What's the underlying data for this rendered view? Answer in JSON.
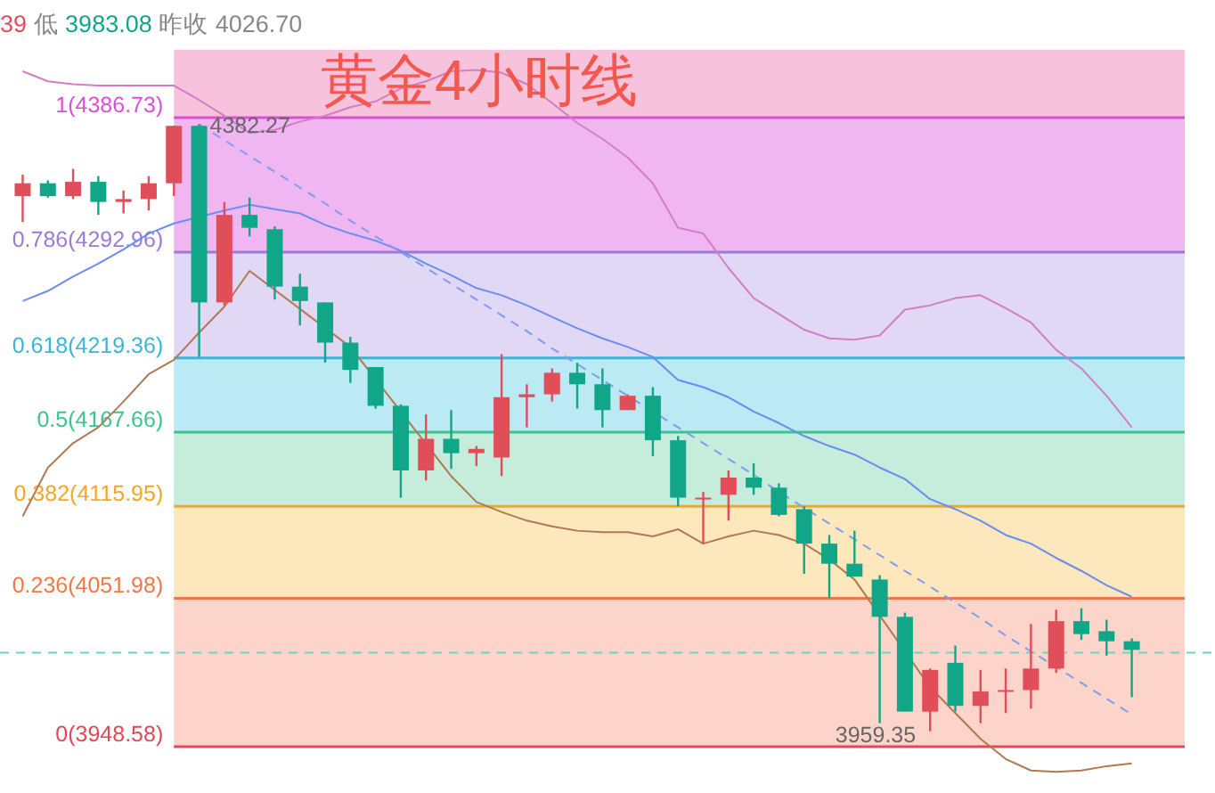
{
  "chart_data": {
    "type": "candlestick",
    "title": "黄金4小时线",
    "annotations": [
      "39 低 3983.08 昨收 4026.70",
      {
        "text": "4382.27",
        "y": 4382.27
      },
      "3959.35"
    ],
    "categories": [
      null,
      null,
      null,
      null,
      null,
      null,
      null,
      null,
      null,
      null,
      null,
      null,
      null,
      null,
      null,
      null,
      null,
      null,
      null,
      null,
      null,
      null,
      null,
      null,
      null,
      null,
      null,
      null,
      null,
      null,
      null,
      null,
      null,
      null,
      null,
      null,
      null,
      null,
      null,
      null,
      null,
      null,
      null,
      null,
      null
    ],
    "ohlc": [
      [
        4332,
        4347,
        4314,
        4341
      ],
      [
        4341,
        4343,
        4331,
        4332
      ],
      [
        4332,
        4351,
        4330,
        4342
      ],
      [
        4342,
        4346,
        4319,
        4328
      ],
      [
        4328,
        4336,
        4320,
        4330
      ],
      [
        4330,
        4346,
        4322,
        4341
      ],
      [
        4341,
        4381,
        4332,
        4381
      ],
      [
        4381,
        4382.27,
        4220,
        4258
      ],
      [
        4258,
        4328,
        4256,
        4319
      ],
      [
        4319,
        4331,
        4304,
        4310
      ],
      [
        4309,
        4311,
        4260,
        4269
      ],
      [
        4269,
        4278,
        4242,
        4259
      ],
      [
        4258,
        4258,
        4216,
        4230
      ],
      [
        4230,
        4234,
        4202,
        4211
      ],
      [
        4213,
        4213,
        4184,
        4186
      ],
      [
        4186,
        4187,
        4122,
        4141
      ],
      [
        4141,
        4180,
        4134,
        4163
      ],
      [
        4163,
        4183,
        4142,
        4153
      ],
      [
        4153,
        4158,
        4144,
        4156
      ],
      [
        4150,
        4222,
        4137,
        4192
      ],
      [
        4192,
        4201,
        4171,
        4194
      ],
      [
        4194,
        4212,
        4189,
        4209
      ],
      [
        4209,
        4216,
        4184,
        4201
      ],
      [
        4201,
        4212,
        4171,
        4183
      ],
      [
        4183,
        4194,
        4183,
        4193
      ],
      [
        4193,
        4199,
        4151,
        4162
      ],
      [
        4162,
        4165,
        4116,
        4122
      ],
      [
        4121,
        4126,
        4090,
        4122
      ],
      [
        4124,
        4141,
        4106,
        4136
      ],
      [
        4136,
        4146,
        4124,
        4129
      ],
      [
        4129,
        4132,
        4109,
        4110
      ],
      [
        4114,
        4116,
        4069,
        4090
      ],
      [
        4090,
        4096,
        4052,
        4076
      ],
      [
        4076,
        4099,
        4067,
        4067
      ],
      [
        4065,
        4068,
        3965,
        4039
      ],
      [
        4039,
        4042,
        3973,
        3973
      ],
      [
        3973,
        4003,
        3959.35,
        4002
      ],
      [
        4007,
        4019,
        3973,
        3977
      ],
      [
        3977,
        4002,
        3965,
        3987
      ],
      [
        3987,
        4003,
        3972,
        3988
      ],
      [
        3988,
        4034,
        3975,
        4003
      ],
      [
        4003,
        4044,
        4000,
        4036
      ],
      [
        4036,
        4045,
        4023,
        4027
      ],
      [
        4029,
        4037,
        4012,
        4022
      ],
      [
        4022,
        4024,
        3983.08,
        4016
      ]
    ],
    "colors": [
      "#e04e5a",
      "#12a689",
      "#e04e5a",
      "#12a689",
      "#e04e5a",
      "#e04e5a",
      "#e04e5a",
      "#12a689",
      "#e04e5a",
      "#12a689",
      "#12a689",
      "#12a689",
      "#12a689",
      "#12a689",
      "#12a689",
      "#12a689",
      "#e04e5a",
      "#12a689",
      "#e04e5a",
      "#e04e5a",
      "#e04e5a",
      "#e04e5a",
      "#12a689",
      "#12a689",
      "#e04e5a",
      "#12a689",
      "#12a689",
      "#e04e5a",
      "#e04e5a",
      "#12a689",
      "#12a689",
      "#12a689",
      "#12a689",
      "#12a689",
      "#12a689",
      "#12a689",
      "#e04e5a",
      "#12a689",
      "#e04e5a",
      "#e04e5a",
      "#e04e5a",
      "#e04e5a",
      "#12a689",
      "#12a689",
      "#12a689"
    ],
    "series": [
      {
        "type": "line",
        "color": "#d47cc6",
        "values": [
          4419,
          4412,
          4410,
          4409,
          4409,
          4409,
          4409,
          4399,
          4388,
          4376,
          4378,
          4384,
          4388,
          4394,
          4398,
          4407,
          4412,
          4419,
          4420,
          4418,
          4410,
          4397,
          4383,
          4372,
          4359,
          4341,
          4310,
          4306,
          4282,
          4261,
          4250,
          4239,
          4233,
          4232,
          4235,
          4253,
          4256,
          4261,
          4263,
          4254,
          4244,
          4225,
          4212,
          4193,
          4171
        ]
      },
      {
        "type": "line",
        "color": "#6b8cf0",
        "values": [
          4259,
          4266,
          4276,
          4285,
          4295,
          4306,
          4313,
          null,
          4322,
          4326,
          4323,
          4320,
          4312,
          4306,
          4301,
          4294,
          4285,
          4277,
          4268,
          4263,
          4256,
          4248,
          4240,
          4233,
          4227,
          4220,
          4204,
          4199,
          4192,
          4182,
          4174,
          4165,
          4158,
          4152,
          4143,
          4135,
          4121,
          4114,
          4106,
          4096,
          4090,
          4080,
          4071,
          4061,
          4053
        ]
      },
      {
        "type": "line",
        "color": "#b07a50",
        "values": [
          4109,
          4143,
          4160,
          4171,
          4189,
          4208,
          4218,
          4237,
          4255,
          4280,
          null,
          null,
          null,
          4227,
          null,
          null,
          null,
          4137,
          4119,
          4112,
          4106,
          4102,
          4099,
          4098,
          4098,
          4095,
          4100,
          4090,
          4095,
          4099,
          4096,
          4090,
          4079,
          4065,
          null,
          null,
          3990,
          3972,
          3954,
          3940,
          3932,
          3931,
          3932,
          3935,
          3937
        ]
      },
      {
        "type": "line",
        "color": "#7f9cf0",
        "line_style": "dashed",
        "values": [
          null,
          null,
          null,
          null,
          null,
          null,
          null,
          4382,
          4371,
          4360,
          4349,
          4338,
          4327,
          4315,
          4304,
          4293,
          4282,
          4271,
          4260,
          4249,
          4238,
          4226,
          4215,
          4204,
          4193,
          null,
          4171,
          4160,
          4149,
          4138,
          4126,
          4115,
          4104,
          4093,
          4082,
          4071,
          4060,
          4049,
          4038,
          4026,
          4015,
          4004,
          3993,
          3982,
          3971
        ]
      }
    ],
    "bands": [
      {
        "axis": "y",
        "from": 4386.73,
        "to": 4434,
        "color": "#f7c3dc"
      },
      {
        "axis": "y",
        "from": 4292.96,
        "to": 4386.73,
        "color": "#f0b6f2"
      },
      {
        "axis": "y",
        "from": 4219.36,
        "to": 4292.96,
        "color": "#e1d8f5"
      },
      {
        "axis": "y",
        "from": 4167.66,
        "to": 4219.36,
        "color": "#bbe9f4"
      },
      {
        "axis": "y",
        "from": 4115.95,
        "to": 4167.66,
        "color": "#c6ecdc"
      },
      {
        "axis": "y",
        "from": 4051.98,
        "to": 4115.95,
        "color": "#fde7bd"
      },
      {
        "axis": "y",
        "from": 3948.58,
        "to": 4051.98,
        "color": "#fdd4c9"
      }
    ],
    "ref_lines": [
      {
        "axis": "y",
        "value": 4386.73,
        "label": "1(4386.73)",
        "color": "#d94fd6"
      },
      {
        "axis": "y",
        "value": 4292.96,
        "label": "0.786(4292.96)",
        "color": "#9b7ad6"
      },
      {
        "axis": "y",
        "value": 4219.36,
        "label": "0.618(4219.36)",
        "color": "#3bb5d8"
      },
      {
        "axis": "y",
        "value": 4167.66,
        "label": "0.5(4167.66)",
        "color": "#3ec38f"
      },
      {
        "axis": "y",
        "value": 4115.95,
        "label": "0.382(4115.95)",
        "color": "#f5a623"
      },
      {
        "axis": "y",
        "value": 4051.98,
        "label": "0.236(4051.98)",
        "color": "#f07848"
      },
      {
        "axis": "y",
        "value": 3948.58,
        "label": "0(3948.58)",
        "color": "#e2485a"
      },
      {
        "axis": "y",
        "value": 4014,
        "color": "#6fd3bf",
        "line_style": "dashed"
      }
    ],
    "tick_labels": false
  }
}
